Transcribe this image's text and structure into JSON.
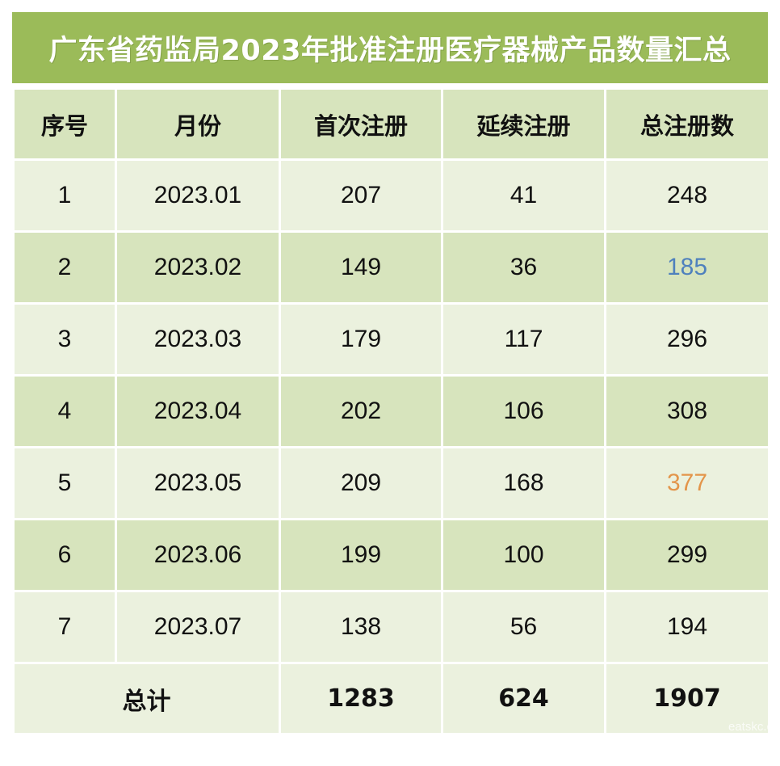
{
  "title": "广东省药监局2023年批准注册医疗器械产品数量汇总",
  "colors": {
    "title_bg": "#9bbb59",
    "header_bg": "#d7e4bd",
    "row_light": "#ebf1de",
    "row_dark": "#d7e4bd",
    "highlight_min": "#4f81bd",
    "highlight_max": "#e3954a"
  },
  "table": {
    "headers": [
      "序号",
      "月份",
      "首次注册",
      "延续注册",
      "总注册数"
    ],
    "rows": [
      {
        "no": "1",
        "month": "2023.01",
        "first": "207",
        "renewal": "41",
        "total": "248"
      },
      {
        "no": "2",
        "month": "2023.02",
        "first": "149",
        "renewal": "36",
        "total": "185"
      },
      {
        "no": "3",
        "month": "2023.03",
        "first": "179",
        "renewal": "117",
        "total": "296"
      },
      {
        "no": "4",
        "month": "2023.04",
        "first": "202",
        "renewal": "106",
        "total": "308"
      },
      {
        "no": "5",
        "month": "2023.05",
        "first": "209",
        "renewal": "168",
        "total": "377"
      },
      {
        "no": "6",
        "month": "2023.06",
        "first": "199",
        "renewal": "100",
        "total": "299"
      },
      {
        "no": "7",
        "month": "2023.07",
        "first": "138",
        "renewal": "56",
        "total": "194"
      }
    ],
    "footer": {
      "label": "总计",
      "first": "1283",
      "renewal": "624",
      "total": "1907"
    }
  },
  "watermark": "eatskc.c"
}
